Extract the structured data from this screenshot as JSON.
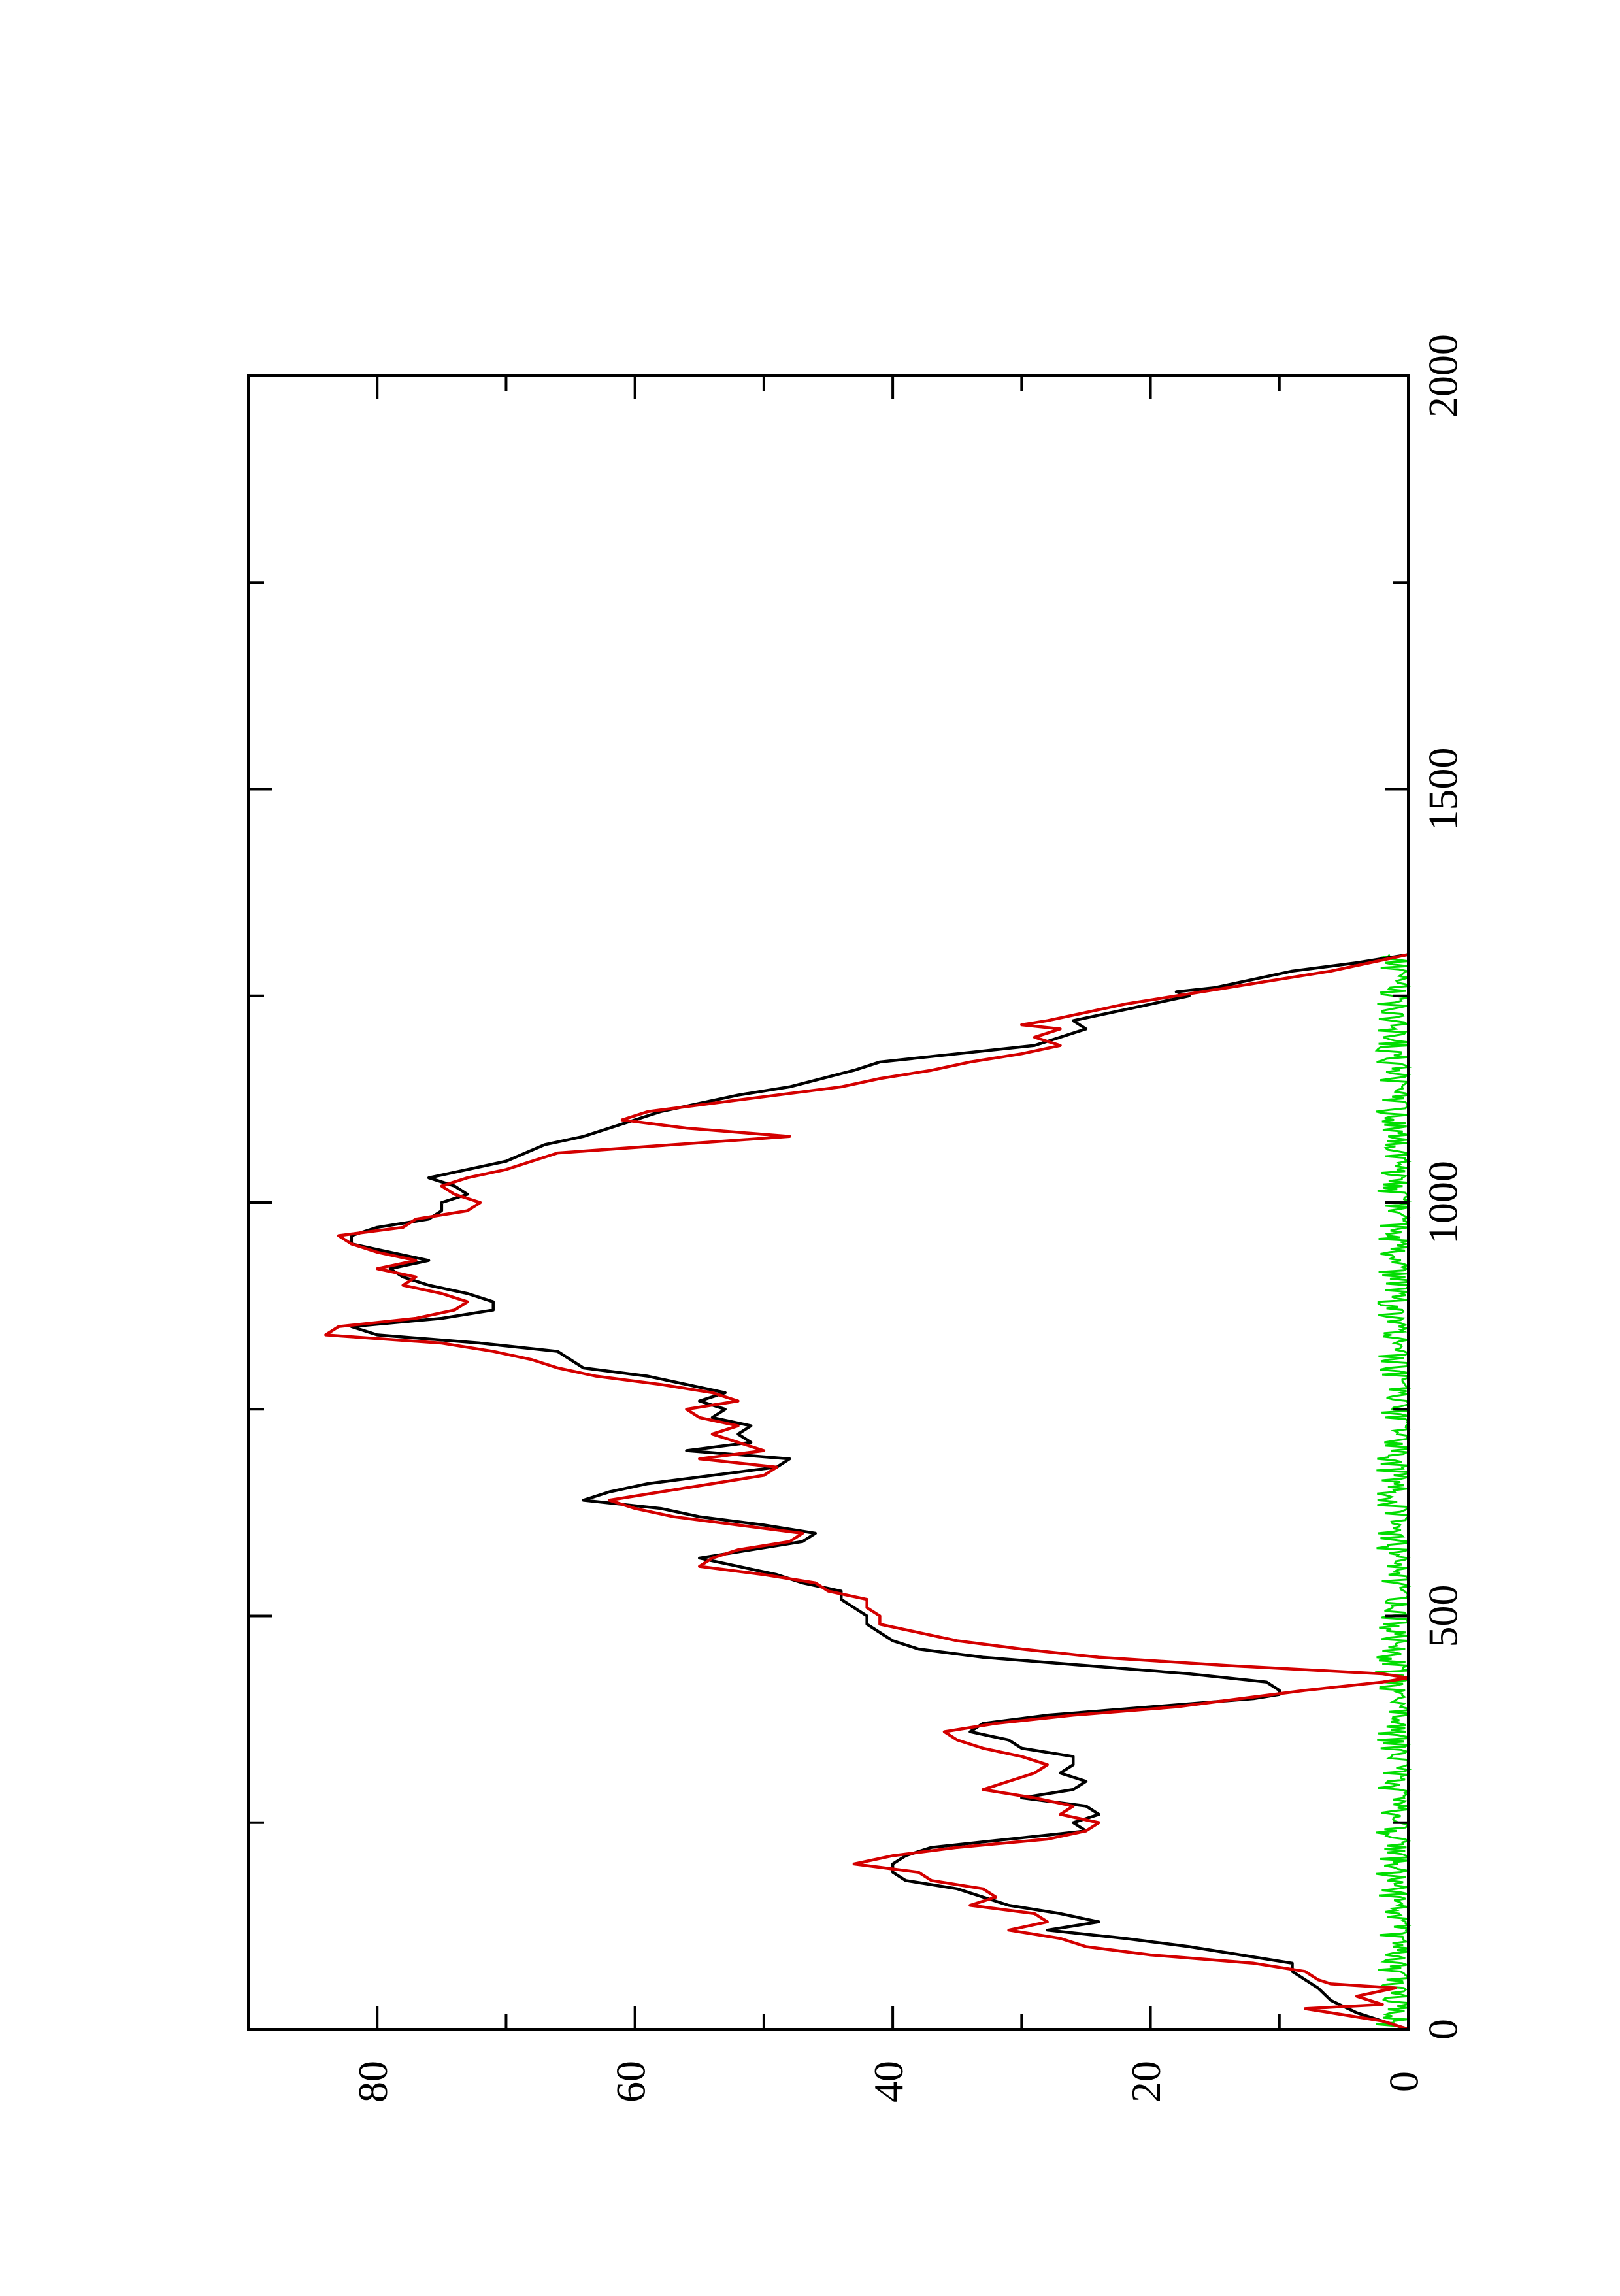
{
  "chart_data": {
    "type": "line",
    "orientation": "rotated-90",
    "title": "",
    "xlabel": "",
    "ylabel": "",
    "xlim": [
      0,
      2000
    ],
    "ylim": [
      0,
      90
    ],
    "x_ticks": [
      0,
      500,
      1000,
      1500,
      2000
    ],
    "y_ticks": [
      0,
      20,
      40,
      60,
      80
    ],
    "grid": false,
    "legend": "none",
    "series": [
      {
        "color": "#000000",
        "points": [
          [
            0,
            0
          ],
          [
            10,
            2
          ],
          [
            20,
            4
          ],
          [
            35,
            6
          ],
          [
            50,
            7
          ],
          [
            60,
            8
          ],
          [
            70,
            9
          ],
          [
            80,
            9
          ],
          [
            90,
            13
          ],
          [
            100,
            17
          ],
          [
            110,
            22
          ],
          [
            120,
            28
          ],
          [
            130,
            24
          ],
          [
            140,
            27
          ],
          [
            150,
            31
          ],
          [
            160,
            33
          ],
          [
            170,
            35
          ],
          [
            180,
            39
          ],
          [
            190,
            40
          ],
          [
            200,
            40
          ],
          [
            210,
            39
          ],
          [
            220,
            37
          ],
          [
            230,
            31
          ],
          [
            240,
            25
          ],
          [
            250,
            26
          ],
          [
            260,
            24
          ],
          [
            270,
            25
          ],
          [
            280,
            30
          ],
          [
            290,
            26
          ],
          [
            300,
            25
          ],
          [
            310,
            27
          ],
          [
            320,
            26
          ],
          [
            330,
            26
          ],
          [
            340,
            30
          ],
          [
            350,
            31
          ],
          [
            360,
            34
          ],
          [
            370,
            33
          ],
          [
            380,
            28
          ],
          [
            390,
            20
          ],
          [
            400,
            12
          ],
          [
            405,
            10
          ],
          [
            410,
            10
          ],
          [
            420,
            11
          ],
          [
            430,
            17
          ],
          [
            440,
            25
          ],
          [
            450,
            33
          ],
          [
            460,
            38
          ],
          [
            470,
            40
          ],
          [
            480,
            41
          ],
          [
            490,
            42
          ],
          [
            500,
            42
          ],
          [
            510,
            43
          ],
          [
            520,
            44
          ],
          [
            530,
            44
          ],
          [
            540,
            47
          ],
          [
            550,
            49
          ],
          [
            560,
            52
          ],
          [
            570,
            55
          ],
          [
            580,
            51
          ],
          [
            590,
            47
          ],
          [
            600,
            46
          ],
          [
            610,
            50
          ],
          [
            620,
            55
          ],
          [
            630,
            58
          ],
          [
            640,
            64
          ],
          [
            650,
            62
          ],
          [
            660,
            59
          ],
          [
            670,
            54
          ],
          [
            680,
            49
          ],
          [
            690,
            48
          ],
          [
            700,
            56
          ],
          [
            710,
            51
          ],
          [
            720,
            52
          ],
          [
            730,
            51
          ],
          [
            740,
            54
          ],
          [
            750,
            53
          ],
          [
            760,
            55
          ],
          [
            770,
            53
          ],
          [
            780,
            56
          ],
          [
            790,
            59
          ],
          [
            800,
            64
          ],
          [
            810,
            65
          ],
          [
            820,
            66
          ],
          [
            830,
            72
          ],
          [
            840,
            80
          ],
          [
            850,
            82
          ],
          [
            860,
            75
          ],
          [
            870,
            71
          ],
          [
            880,
            71
          ],
          [
            890,
            73
          ],
          [
            900,
            76
          ],
          [
            910,
            78
          ],
          [
            920,
            79
          ],
          [
            930,
            76
          ],
          [
            940,
            79
          ],
          [
            950,
            82
          ],
          [
            960,
            82
          ],
          [
            970,
            80
          ],
          [
            980,
            76
          ],
          [
            990,
            75
          ],
          [
            1000,
            75
          ],
          [
            1010,
            73
          ],
          [
            1020,
            74
          ],
          [
            1030,
            76
          ],
          [
            1050,
            70
          ],
          [
            1070,
            67
          ],
          [
            1080,
            64
          ],
          [
            1100,
            60
          ],
          [
            1110,
            58
          ],
          [
            1120,
            55
          ],
          [
            1130,
            52
          ],
          [
            1140,
            48
          ],
          [
            1160,
            43
          ],
          [
            1170,
            41
          ],
          [
            1180,
            35
          ],
          [
            1190,
            29
          ],
          [
            1200,
            27
          ],
          [
            1210,
            25
          ],
          [
            1220,
            26
          ],
          [
            1230,
            23
          ],
          [
            1240,
            20
          ],
          [
            1250,
            17
          ],
          [
            1255,
            18
          ],
          [
            1260,
            15
          ],
          [
            1270,
            12
          ],
          [
            1280,
            9
          ],
          [
            1290,
            4
          ],
          [
            1300,
            0
          ]
        ]
      },
      {
        "color": "#d40000",
        "points": [
          [
            0,
            0
          ],
          [
            10,
            2
          ],
          [
            15,
            4
          ],
          [
            25,
            8
          ],
          [
            30,
            2
          ],
          [
            40,
            4
          ],
          [
            50,
            1
          ],
          [
            55,
            6
          ],
          [
            60,
            7
          ],
          [
            70,
            8
          ],
          [
            80,
            12
          ],
          [
            90,
            20
          ],
          [
            100,
            25
          ],
          [
            110,
            27
          ],
          [
            120,
            31
          ],
          [
            130,
            28
          ],
          [
            140,
            29
          ],
          [
            150,
            34
          ],
          [
            160,
            32
          ],
          [
            170,
            33
          ],
          [
            180,
            37
          ],
          [
            190,
            38
          ],
          [
            200,
            43
          ],
          [
            210,
            40
          ],
          [
            220,
            35
          ],
          [
            230,
            28
          ],
          [
            240,
            25
          ],
          [
            250,
            24
          ],
          [
            260,
            27
          ],
          [
            270,
            26
          ],
          [
            280,
            29
          ],
          [
            290,
            33
          ],
          [
            300,
            31
          ],
          [
            310,
            29
          ],
          [
            320,
            28
          ],
          [
            330,
            30
          ],
          [
            340,
            33
          ],
          [
            350,
            35
          ],
          [
            360,
            36
          ],
          [
            370,
            32
          ],
          [
            380,
            26
          ],
          [
            390,
            18
          ],
          [
            400,
            13
          ],
          [
            410,
            8
          ],
          [
            420,
            2
          ],
          [
            425,
            0
          ],
          [
            430,
            2
          ],
          [
            440,
            14
          ],
          [
            450,
            24
          ],
          [
            460,
            30
          ],
          [
            470,
            35
          ],
          [
            480,
            38
          ],
          [
            490,
            41
          ],
          [
            500,
            41
          ],
          [
            510,
            42
          ],
          [
            520,
            42
          ],
          [
            530,
            45
          ],
          [
            540,
            46
          ],
          [
            550,
            50
          ],
          [
            560,
            55
          ],
          [
            570,
            54
          ],
          [
            580,
            52
          ],
          [
            590,
            48
          ],
          [
            600,
            47
          ],
          [
            610,
            52
          ],
          [
            620,
            57
          ],
          [
            630,
            60
          ],
          [
            640,
            62
          ],
          [
            650,
            58
          ],
          [
            660,
            54
          ],
          [
            670,
            50
          ],
          [
            680,
            49
          ],
          [
            690,
            55
          ],
          [
            700,
            50
          ],
          [
            710,
            52
          ],
          [
            720,
            54
          ],
          [
            730,
            52
          ],
          [
            740,
            55
          ],
          [
            750,
            56
          ],
          [
            760,
            52
          ],
          [
            770,
            54
          ],
          [
            780,
            58
          ],
          [
            790,
            63
          ],
          [
            800,
            66
          ],
          [
            810,
            68
          ],
          [
            820,
            71
          ],
          [
            830,
            75
          ],
          [
            840,
            84
          ],
          [
            850,
            83
          ],
          [
            860,
            77
          ],
          [
            870,
            74
          ],
          [
            880,
            73
          ],
          [
            890,
            75
          ],
          [
            900,
            78
          ],
          [
            910,
            77
          ],
          [
            920,
            80
          ],
          [
            930,
            77
          ],
          [
            940,
            80
          ],
          [
            950,
            82
          ],
          [
            960,
            83
          ],
          [
            970,
            78
          ],
          [
            980,
            77
          ],
          [
            990,
            73
          ],
          [
            1000,
            72
          ],
          [
            1010,
            74
          ],
          [
            1020,
            75
          ],
          [
            1030,
            73
          ],
          [
            1040,
            70
          ],
          [
            1050,
            68
          ],
          [
            1060,
            66
          ],
          [
            1080,
            48
          ],
          [
            1090,
            56
          ],
          [
            1100,
            61
          ],
          [
            1110,
            59
          ],
          [
            1120,
            54
          ],
          [
            1130,
            49
          ],
          [
            1140,
            44
          ],
          [
            1150,
            41
          ],
          [
            1160,
            37
          ],
          [
            1170,
            34
          ],
          [
            1180,
            30
          ],
          [
            1190,
            27
          ],
          [
            1200,
            29
          ],
          [
            1210,
            27
          ],
          [
            1215,
            30
          ],
          [
            1220,
            28
          ],
          [
            1230,
            25
          ],
          [
            1240,
            22
          ],
          [
            1250,
            18
          ],
          [
            1260,
            14
          ],
          [
            1270,
            10
          ],
          [
            1280,
            6
          ],
          [
            1290,
            3
          ],
          [
            1300,
            0
          ]
        ]
      },
      {
        "color": "#00dd00",
        "noise": true,
        "x_range": [
          0,
          1300
        ],
        "y_max": 2.5,
        "samples": 650
      }
    ]
  }
}
